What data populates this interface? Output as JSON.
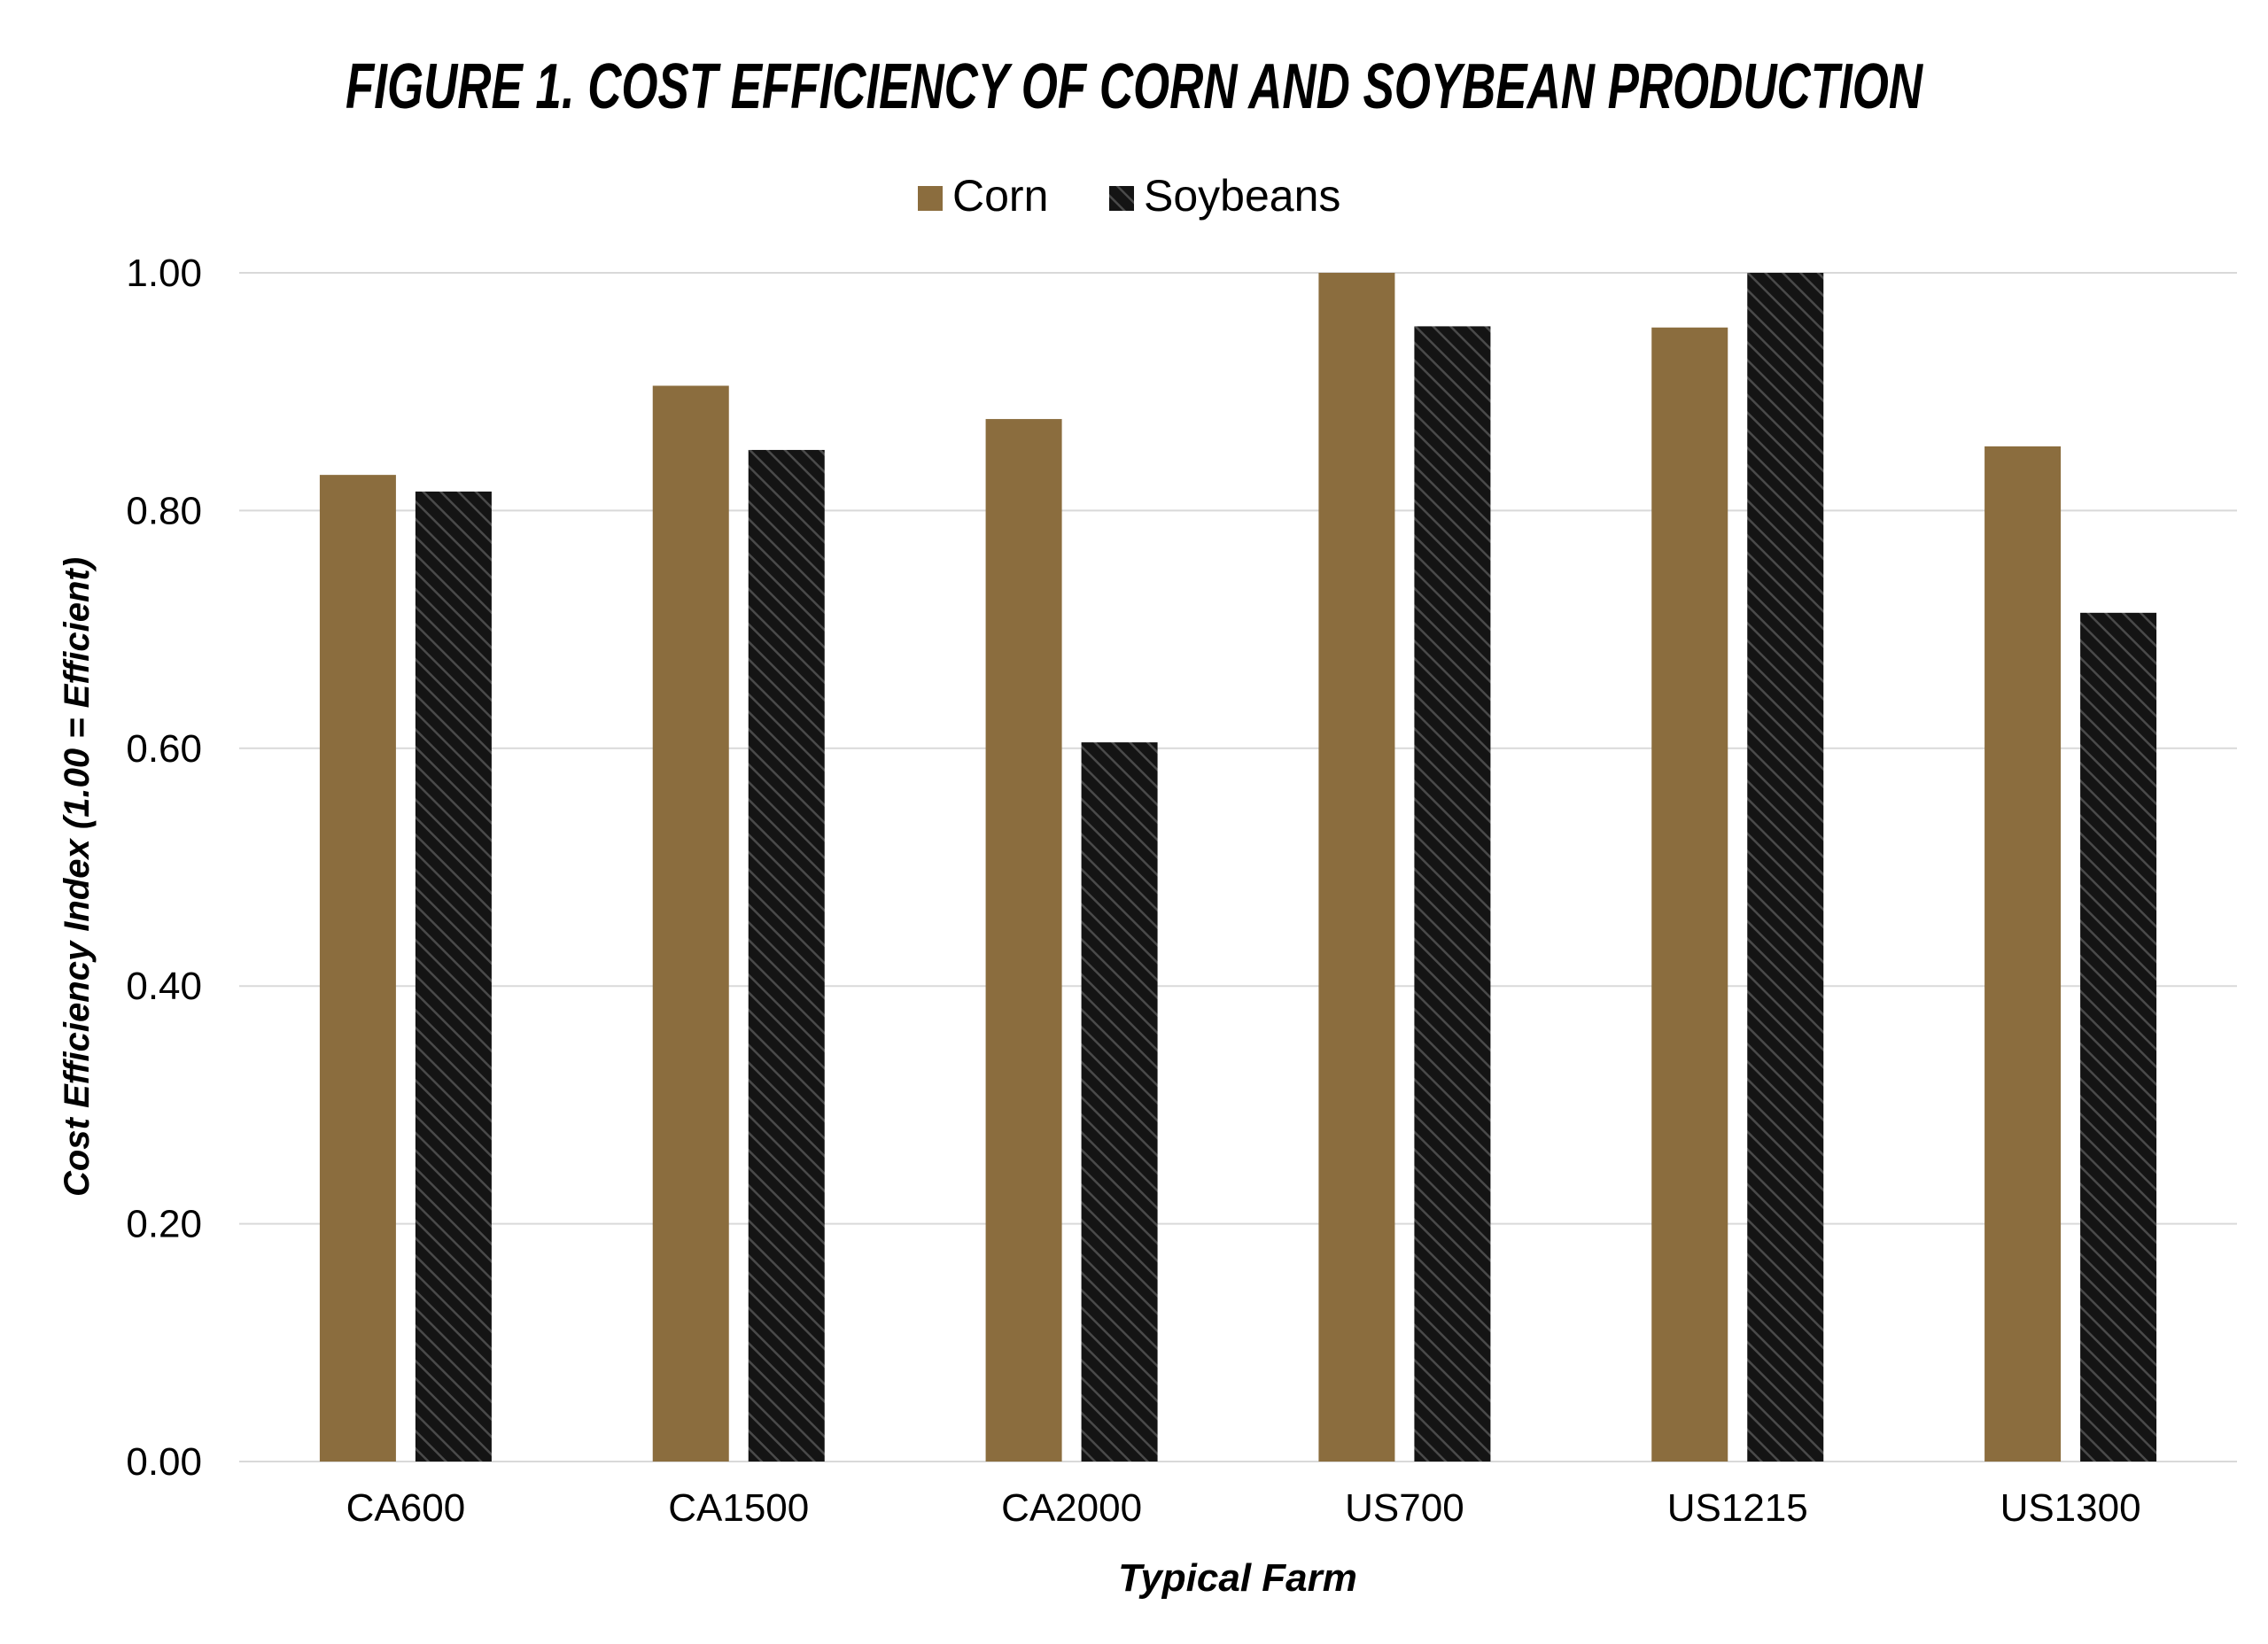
{
  "chart_data": {
    "type": "bar",
    "title": "FIGURE 1. COST EFFICIENCY OF CORN AND SOYBEAN PRODUCTION",
    "xlabel": "Typical Farm",
    "ylabel": "Cost Efficiency Index (1.00 = Efficient)",
    "categories": [
      "CA600",
      "CA1500",
      "CA2000",
      "US700",
      "US1215",
      "US1300"
    ],
    "series": [
      {
        "name": "Corn",
        "color": "#8b6d3e",
        "pattern": "solid",
        "values": [
          0.83,
          0.905,
          0.877,
          1.0,
          0.954,
          0.854
        ]
      },
      {
        "name": "Soybeans",
        "color": "#1c1c1c",
        "pattern": "hatched",
        "values": [
          0.816,
          0.851,
          0.605,
          0.955,
          1.0,
          0.714
        ]
      }
    ],
    "yticks": [
      "0.00",
      "0.20",
      "0.40",
      "0.60",
      "0.80",
      "1.00"
    ],
    "ylim": [
      0,
      1.0
    ],
    "grid": true,
    "legend_position": "top-center",
    "gridline_color": "#d9d9d9"
  }
}
